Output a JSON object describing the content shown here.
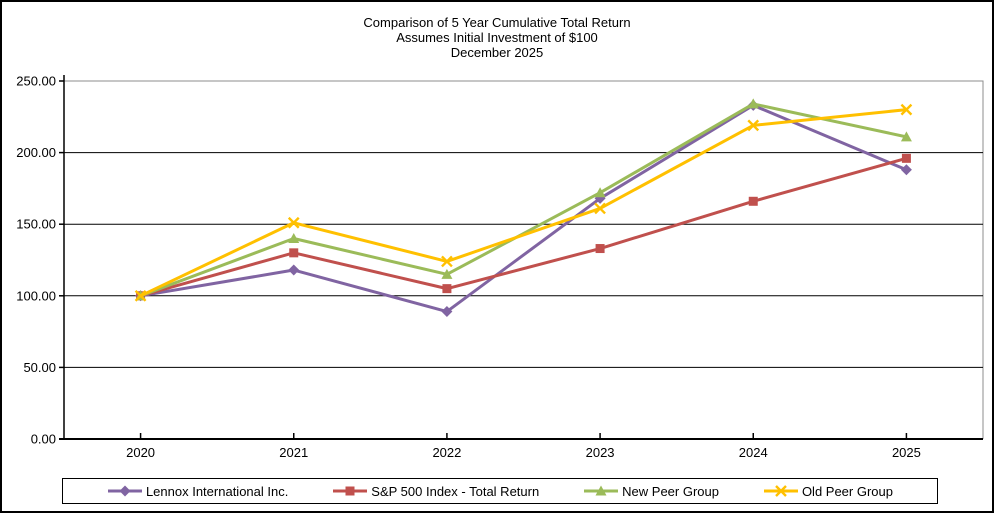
{
  "title": {
    "line1": "Comparison of 5 Year Cumulative Total Return",
    "line2": "Assumes Initial Investment of $100",
    "line3": "December 2025"
  },
  "chart_data": {
    "type": "line",
    "title": "Comparison of 5 Year Cumulative Total Return",
    "subtitle": "Assumes Initial Investment of $100",
    "date_label": "December 2025",
    "categories": [
      "2020",
      "2021",
      "2022",
      "2023",
      "2024",
      "2025"
    ],
    "series": [
      {
        "name": "Lennox International Inc.",
        "marker": "diamond",
        "color": "#8064A2",
        "values": [
          100,
          118,
          89,
          168,
          233,
          188
        ]
      },
      {
        "name": "S&P 500 Index - Total Return",
        "marker": "square",
        "color": "#C0504D",
        "values": [
          100,
          130,
          105,
          133,
          166,
          196
        ]
      },
      {
        "name": "New Peer Group",
        "marker": "triangle",
        "color": "#9BBB59",
        "values": [
          100,
          140,
          115,
          172,
          234,
          211
        ]
      },
      {
        "name": "Old Peer Group",
        "marker": "x",
        "color": "#FFC000",
        "values": [
          100,
          151,
          124,
          161,
          219,
          230
        ]
      }
    ],
    "ylim": [
      0,
      250
    ],
    "y_ticks": [
      "250.00",
      "200.00",
      "150.00",
      "100.00",
      "50.00",
      "0.00"
    ],
    "grid": true,
    "legend_position": "bottom",
    "axis_color": "#000000",
    "gridline_color": "#000000",
    "plot_border_color": "#8C8C8C"
  }
}
